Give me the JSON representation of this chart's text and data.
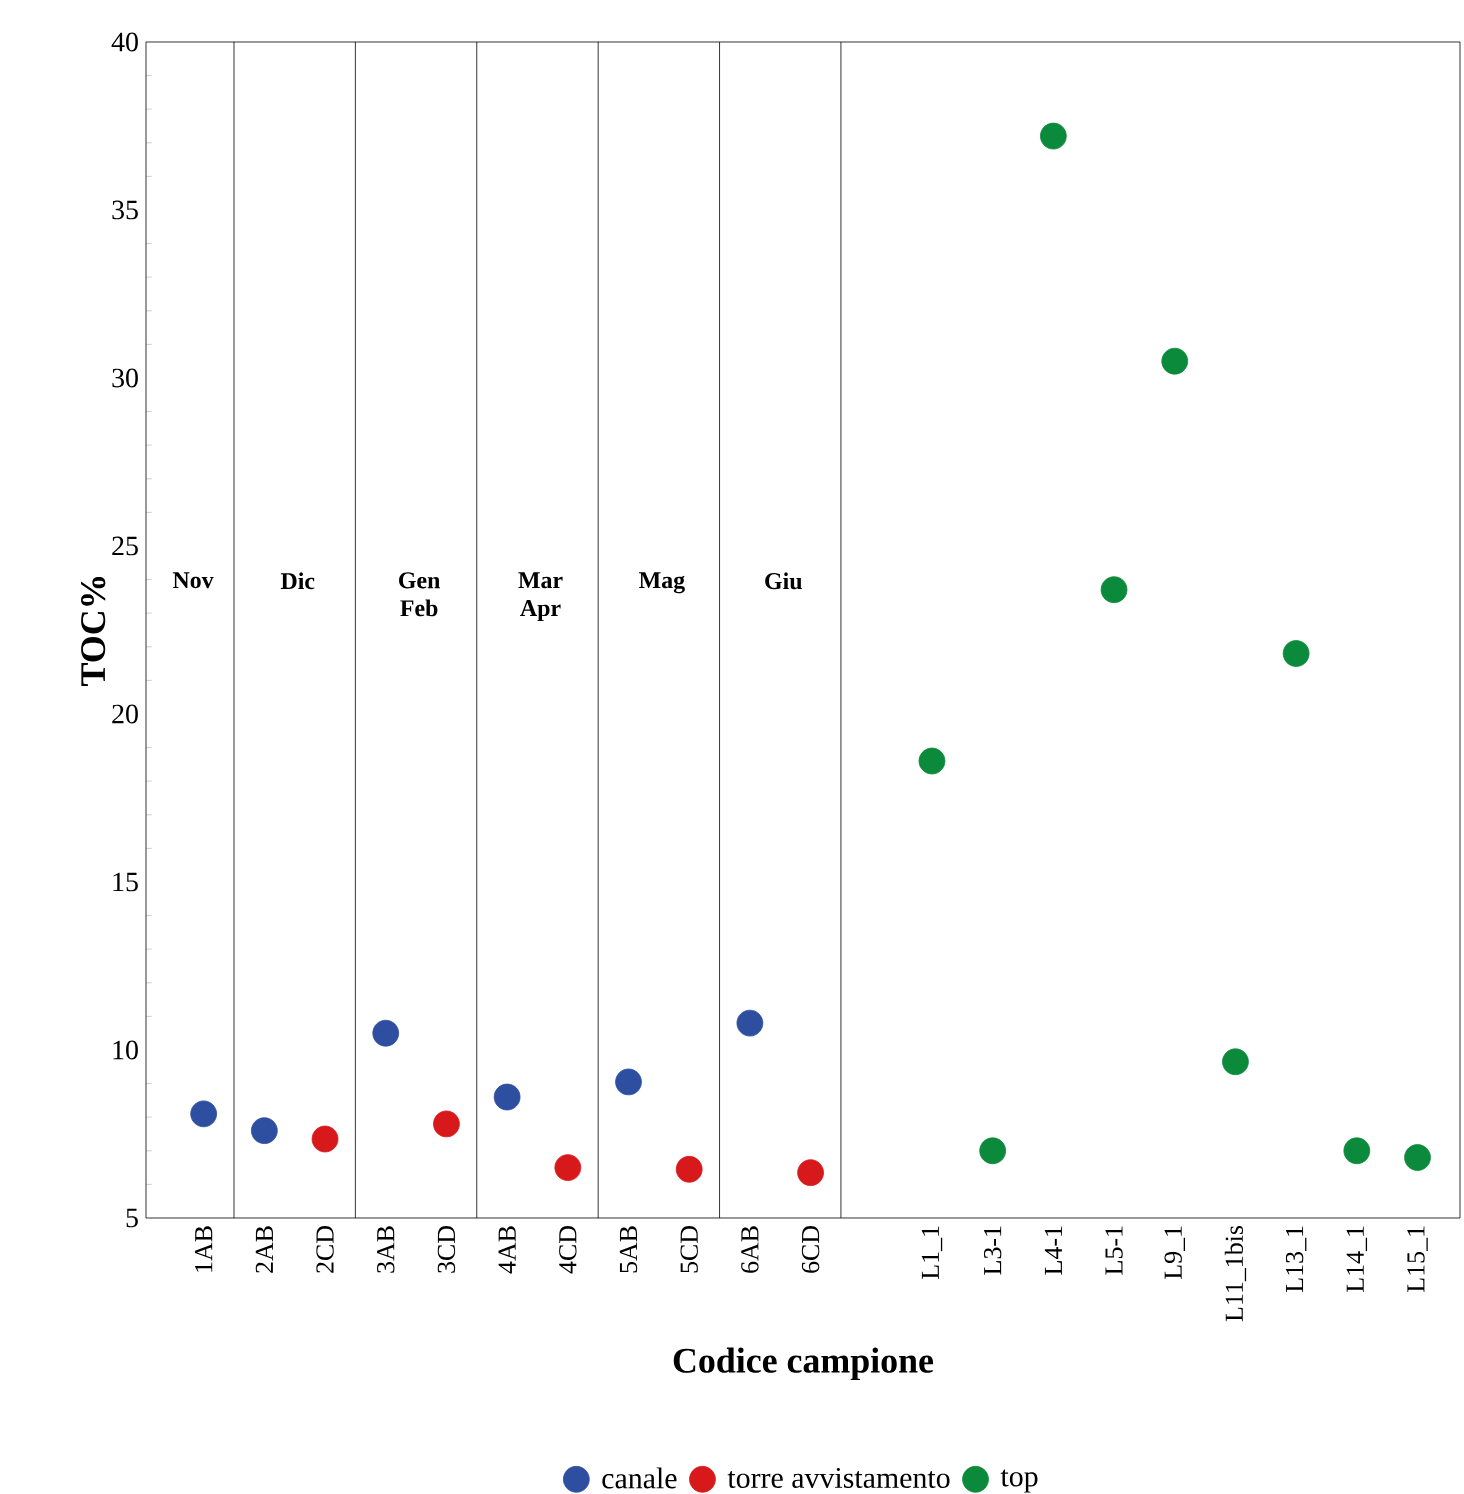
{
  "chart_data": {
    "type": "scatter",
    "xlabel": "Codice campione",
    "ylabel": "TOC%",
    "categories": [
      "1AB",
      "2AB",
      "2CD",
      "3AB",
      "3CD",
      "4AB",
      "4CD",
      "5AB",
      "5CD",
      "6AB",
      "6CD",
      null,
      "L1_1",
      "L3-1",
      "L4-1",
      "L5-1",
      "L9_1",
      "L11_1bis",
      "L13_1",
      "L14_1",
      "L15_1"
    ],
    "series": [
      {
        "name": "canale",
        "color": "#2e4fa0",
        "values": [
          8.1,
          7.6,
          null,
          10.5,
          null,
          8.6,
          null,
          9.05,
          null,
          10.8,
          null,
          null,
          null,
          null,
          null,
          null,
          null,
          null,
          null,
          null,
          null
        ]
      },
      {
        "name": "torre avvistamento",
        "color": "#d7191c",
        "values": [
          null,
          null,
          7.35,
          null,
          7.8,
          null,
          6.5,
          null,
          6.45,
          null,
          6.35,
          null,
          null,
          null,
          null,
          null,
          null,
          null,
          null,
          null,
          null
        ]
      },
      {
        "name": "top",
        "color": "#0a8a3a",
        "values": [
          null,
          null,
          null,
          null,
          null,
          null,
          null,
          null,
          null,
          null,
          null,
          null,
          18.6,
          7.0,
          37.2,
          23.7,
          30.5,
          9.65,
          21.8,
          7.0,
          6.8
        ]
      }
    ],
    "ylim": [
      5,
      40
    ],
    "yticks": [
      5,
      10,
      15,
      20,
      25,
      30,
      35,
      40
    ],
    "annotations": [
      "Nov",
      "Dic",
      "Gen Feb",
      "Mar Apr",
      "Mag",
      "Giu"
    ],
    "grid": false,
    "legend": "bottom"
  }
}
